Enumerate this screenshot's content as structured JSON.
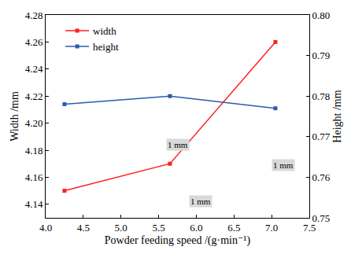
{
  "chart_data": {
    "type": "line",
    "x_label": "Powder feeding speed /(g·min⁻¹)",
    "y_label": "Width /mm",
    "y2_label": "Height /mm",
    "x": [
      4.25,
      5.65,
      7.05
    ],
    "series": [
      {
        "name": "width",
        "color": "#ff1f1f",
        "marker": "square",
        "values": [
          4.15,
          4.17,
          4.26
        ]
      },
      {
        "name": "height",
        "color": "#2a5cb0",
        "marker": "square",
        "axis": "y2",
        "values": [
          0.778,
          0.78,
          0.777
        ]
      }
    ],
    "xlim": [
      4.0,
      7.5
    ],
    "xticks": [
      {
        "value": 4,
        "label": "4.0"
      },
      4.5,
      {
        "value": 5,
        "label": "5.0"
      },
      5.5,
      {
        "value": 6,
        "label": "6.0"
      },
      6.5,
      {
        "value": 7,
        "label": "7.0"
      },
      7.5
    ],
    "ylim": [
      4.13,
      4.28
    ],
    "yticks": [
      4.14,
      4.16,
      4.18,
      {
        "value": 4.2,
        "label": "4.20"
      },
      4.22,
      4.24,
      4.26,
      4.28
    ],
    "y2lim": [
      0.75,
      0.8
    ],
    "y2ticks": [
      0.75,
      0.76,
      0.77,
      0.78,
      0.79,
      {
        "value": 0.8,
        "label": "0.80"
      }
    ],
    "legend": "upper left",
    "grid": false,
    "annotations": [
      {
        "text": "1 mm",
        "x": 5.76,
        "y": 4.184
      },
      {
        "text": "1 mm",
        "x": 7.16,
        "y": 4.169
      },
      {
        "text": "1 mm",
        "x": 6.06,
        "y": 4.142
      }
    ]
  }
}
